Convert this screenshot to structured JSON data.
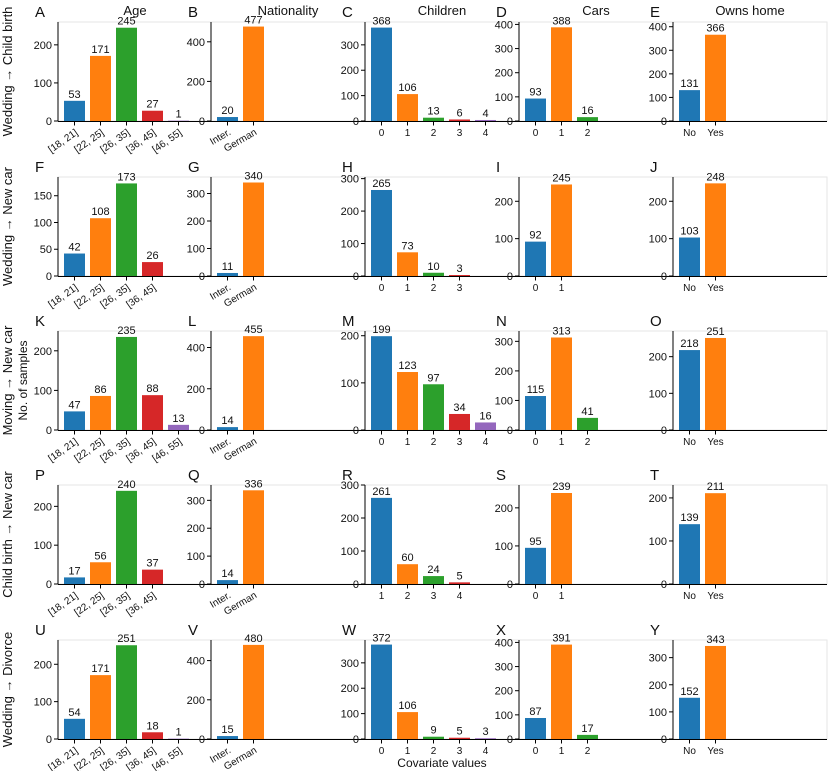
{
  "column_titles": [
    "Age",
    "Nationality",
    "Children",
    "Cars",
    "Owns home"
  ],
  "row_titles": [
    "Wedding → Child birth",
    "Wedding → New car",
    "Moving → New car",
    "Child birth → New car",
    "Wedding → Divorce"
  ],
  "ylabel": "No. of samples",
  "xlabel": "Covariate values",
  "colors": [
    "#1f77b4",
    "#ff7f0e",
    "#2ca02c",
    "#d62728",
    "#9467bd"
  ],
  "chart_data": [
    {
      "panel": "A",
      "type": "bar",
      "categories": [
        "[18, 21]",
        "[22, 25]",
        "[26, 35]",
        "[36, 45]",
        "[46, 55]"
      ],
      "values": [
        53,
        171,
        245,
        27,
        1
      ],
      "ylim": [
        0,
        260
      ],
      "yticks": [
        0,
        100,
        200
      ]
    },
    {
      "panel": "B",
      "type": "bar",
      "categories": [
        "Inter.",
        "German"
      ],
      "values": [
        20,
        477
      ],
      "ylim": [
        0,
        500
      ],
      "yticks": [
        0,
        200,
        400
      ]
    },
    {
      "panel": "C",
      "type": "bar",
      "categories": [
        "0",
        "1",
        "2",
        "3",
        "4"
      ],
      "values": [
        368,
        106,
        13,
        6,
        4
      ],
      "ylim": [
        0,
        390
      ],
      "yticks": [
        0,
        100,
        200,
        300
      ]
    },
    {
      "panel": "D",
      "type": "bar",
      "categories": [
        "0",
        "1",
        "2"
      ],
      "values": [
        93,
        388,
        16
      ],
      "ylim": [
        0,
        410
      ],
      "yticks": [
        0,
        100,
        200,
        300,
        400
      ]
    },
    {
      "panel": "E",
      "type": "bar",
      "categories": [
        "No",
        "Yes"
      ],
      "values": [
        131,
        366
      ],
      "ylim": [
        0,
        420
      ],
      "yticks": [
        0,
        100,
        200,
        300,
        400
      ]
    },
    {
      "panel": "F",
      "type": "bar",
      "categories": [
        "[18, 21]",
        "[22, 25]",
        "[26, 35]",
        "[36, 45]"
      ],
      "values": [
        42,
        108,
        173,
        26
      ],
      "ylim": [
        0,
        185
      ],
      "yticks": [
        0,
        50,
        100,
        150
      ]
    },
    {
      "panel": "G",
      "type": "bar",
      "categories": [
        "Inter.",
        "German"
      ],
      "values": [
        11,
        340
      ],
      "ylim": [
        0,
        360
      ],
      "yticks": [
        0,
        100,
        200,
        300
      ]
    },
    {
      "panel": "H",
      "type": "bar",
      "categories": [
        "0",
        "1",
        "2",
        "3"
      ],
      "values": [
        265,
        73,
        10,
        3
      ],
      "ylim": [
        0,
        305
      ],
      "yticks": [
        0,
        100,
        200,
        300
      ]
    },
    {
      "panel": "I",
      "type": "bar",
      "categories": [
        "0",
        "1"
      ],
      "values": [
        92,
        245
      ],
      "ylim": [
        0,
        265
      ],
      "yticks": [
        0,
        100,
        200
      ]
    },
    {
      "panel": "J",
      "type": "bar",
      "categories": [
        "No",
        "Yes"
      ],
      "values": [
        103,
        248
      ],
      "ylim": [
        0,
        265
      ],
      "yticks": [
        0,
        100,
        200
      ]
    },
    {
      "panel": "K",
      "type": "bar",
      "categories": [
        "[18, 21]",
        "[22, 25]",
        "[26, 35]",
        "[36, 45]",
        "[46, 55]"
      ],
      "values": [
        47,
        86,
        235,
        88,
        13
      ],
      "ylim": [
        0,
        250
      ],
      "yticks": [
        0,
        100,
        200
      ]
    },
    {
      "panel": "L",
      "type": "bar",
      "categories": [
        "Inter.",
        "German"
      ],
      "values": [
        14,
        455
      ],
      "ylim": [
        0,
        480
      ],
      "yticks": [
        0,
        200,
        400
      ]
    },
    {
      "panel": "M",
      "type": "bar",
      "categories": [
        "0",
        "1",
        "2",
        "3",
        "4"
      ],
      "values": [
        199,
        123,
        97,
        34,
        16
      ],
      "ylim": [
        0,
        210
      ],
      "yticks": [
        0,
        100,
        200
      ]
    },
    {
      "panel": "N",
      "type": "bar",
      "categories": [
        "0",
        "1",
        "2"
      ],
      "values": [
        115,
        313,
        41
      ],
      "ylim": [
        0,
        335
      ],
      "yticks": [
        0,
        100,
        200,
        300
      ]
    },
    {
      "panel": "O",
      "type": "bar",
      "categories": [
        "No",
        "Yes"
      ],
      "values": [
        218,
        251
      ],
      "ylim": [
        0,
        270
      ],
      "yticks": [
        0,
        100,
        200
      ]
    },
    {
      "panel": "P",
      "type": "bar",
      "categories": [
        "[18, 21]",
        "[22, 25]",
        "[26, 35]",
        "[36, 45]"
      ],
      "values": [
        17,
        56,
        240,
        37
      ],
      "ylim": [
        0,
        255
      ],
      "yticks": [
        0,
        100,
        200
      ]
    },
    {
      "panel": "Q",
      "type": "bar",
      "categories": [
        "Inter.",
        "German"
      ],
      "values": [
        14,
        336
      ],
      "ylim": [
        0,
        355
      ],
      "yticks": [
        0,
        100,
        200,
        300
      ]
    },
    {
      "panel": "R",
      "type": "bar",
      "categories": [
        "1",
        "2",
        "3",
        "4"
      ],
      "values": [
        261,
        60,
        24,
        5
      ],
      "ylim": [
        0,
        300
      ],
      "yticks": [
        0,
        100,
        200,
        300
      ]
    },
    {
      "panel": "S",
      "type": "bar",
      "categories": [
        "0",
        "1"
      ],
      "values": [
        95,
        239
      ],
      "ylim": [
        0,
        260
      ],
      "yticks": [
        0,
        100,
        200
      ]
    },
    {
      "panel": "T",
      "type": "bar",
      "categories": [
        "No",
        "Yes"
      ],
      "values": [
        139,
        211
      ],
      "ylim": [
        0,
        230
      ],
      "yticks": [
        0,
        100,
        200
      ]
    },
    {
      "panel": "U",
      "type": "bar",
      "categories": [
        "[18, 21]",
        "[22, 25]",
        "[26, 35]",
        "[36, 45]",
        "[46, 55]"
      ],
      "values": [
        54,
        171,
        251,
        18,
        1
      ],
      "ylim": [
        0,
        265
      ],
      "yticks": [
        0,
        100,
        200
      ]
    },
    {
      "panel": "V",
      "type": "bar",
      "categories": [
        "Inter.",
        "German"
      ],
      "values": [
        15,
        480
      ],
      "ylim": [
        0,
        505
      ],
      "yticks": [
        0,
        200,
        400
      ]
    },
    {
      "panel": "W",
      "type": "bar",
      "categories": [
        "0",
        "1",
        "2",
        "3",
        "4"
      ],
      "values": [
        372,
        106,
        9,
        5,
        3
      ],
      "ylim": [
        0,
        390
      ],
      "yticks": [
        0,
        100,
        200,
        300
      ]
    },
    {
      "panel": "X",
      "type": "bar",
      "categories": [
        "0",
        "1",
        "2"
      ],
      "values": [
        87,
        391,
        17
      ],
      "ylim": [
        0,
        410
      ],
      "yticks": [
        0,
        100,
        200,
        300,
        400
      ]
    },
    {
      "panel": "Y",
      "type": "bar",
      "categories": [
        "No",
        "Yes"
      ],
      "values": [
        152,
        343
      ],
      "ylim": [
        0,
        365
      ],
      "yticks": [
        0,
        100,
        200,
        300
      ]
    }
  ]
}
